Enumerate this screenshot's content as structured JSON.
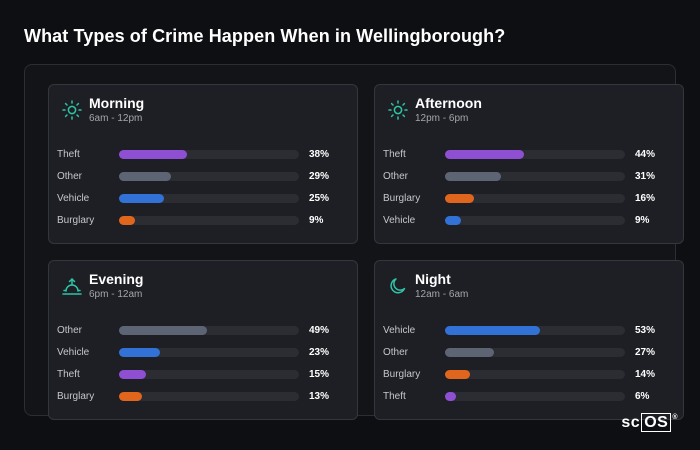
{
  "page": {
    "title": "What Types of Crime Happen When in Wellingborough?"
  },
  "brand": {
    "prefix": "sc",
    "boxed": "OS",
    "mark": "®"
  },
  "colors": {
    "accent_teal": "#2fc4a6",
    "Theft": "#8f4fd3",
    "Other": "#5d6575",
    "Vehicle": "#3271d6",
    "Burglary": "#e0651d"
  },
  "panels": [
    {
      "title": "Morning",
      "subtitle": "6am - 12pm",
      "icon": "sun-icon",
      "rows": [
        {
          "label": "Theft",
          "value": 38,
          "pct": "38%"
        },
        {
          "label": "Other",
          "value": 29,
          "pct": "29%"
        },
        {
          "label": "Vehicle",
          "value": 25,
          "pct": "25%"
        },
        {
          "label": "Burglary",
          "value": 9,
          "pct": "9%"
        }
      ]
    },
    {
      "title": "Afternoon",
      "subtitle": "12pm - 6pm",
      "icon": "sun-icon",
      "rows": [
        {
          "label": "Theft",
          "value": 44,
          "pct": "44%"
        },
        {
          "label": "Other",
          "value": 31,
          "pct": "31%"
        },
        {
          "label": "Burglary",
          "value": 16,
          "pct": "16%"
        },
        {
          "label": "Vehicle",
          "value": 9,
          "pct": "9%"
        }
      ]
    },
    {
      "title": "Evening",
      "subtitle": "6pm - 12am",
      "icon": "sunset-icon",
      "rows": [
        {
          "label": "Other",
          "value": 49,
          "pct": "49%"
        },
        {
          "label": "Vehicle",
          "value": 23,
          "pct": "23%"
        },
        {
          "label": "Theft",
          "value": 15,
          "pct": "15%"
        },
        {
          "label": "Burglary",
          "value": 13,
          "pct": "13%"
        }
      ]
    },
    {
      "title": "Night",
      "subtitle": "12am - 6am",
      "icon": "moon-icon",
      "rows": [
        {
          "label": "Vehicle",
          "value": 53,
          "pct": "53%"
        },
        {
          "label": "Other",
          "value": 27,
          "pct": "27%"
        },
        {
          "label": "Burglary",
          "value": 14,
          "pct": "14%"
        },
        {
          "label": "Theft",
          "value": 6,
          "pct": "6%"
        }
      ]
    }
  ],
  "chart_data": [
    {
      "type": "bar",
      "title": "Morning",
      "subtitle": "6am - 12pm",
      "categories": [
        "Theft",
        "Other",
        "Vehicle",
        "Burglary"
      ],
      "values": [
        38,
        29,
        25,
        9
      ],
      "ylim": [
        0,
        100
      ]
    },
    {
      "type": "bar",
      "title": "Afternoon",
      "subtitle": "12pm - 6pm",
      "categories": [
        "Theft",
        "Other",
        "Burglary",
        "Vehicle"
      ],
      "values": [
        44,
        31,
        16,
        9
      ],
      "ylim": [
        0,
        100
      ]
    },
    {
      "type": "bar",
      "title": "Evening",
      "subtitle": "6pm - 12am",
      "categories": [
        "Other",
        "Vehicle",
        "Theft",
        "Burglary"
      ],
      "values": [
        49,
        23,
        15,
        13
      ],
      "ylim": [
        0,
        100
      ]
    },
    {
      "type": "bar",
      "title": "Night",
      "subtitle": "12am - 6am",
      "categories": [
        "Vehicle",
        "Other",
        "Burglary",
        "Theft"
      ],
      "values": [
        53,
        27,
        14,
        6
      ],
      "ylim": [
        0,
        100
      ]
    }
  ]
}
